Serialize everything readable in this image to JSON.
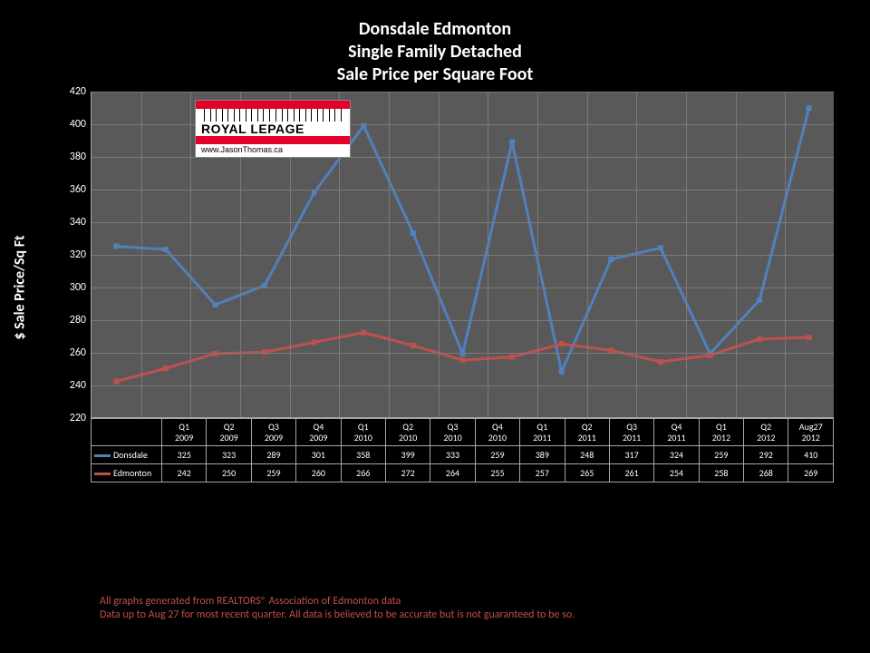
{
  "title_line1": "Donsdale Edmonton",
  "title_line2": "Single Family Detached",
  "title_line3": "Sale Price per Square Foot",
  "y_axis_label": "$ Sale Price/Sq Ft",
  "background_color": "#000000",
  "plot_background": "#595959",
  "grid_color": "#7a7a7a",
  "axis_color": "#a6a6a6",
  "text_color": "#ffffff",
  "ylim": [
    220,
    420
  ],
  "ytick_step": 20,
  "categories": [
    "Q1 2009",
    "Q2 2009",
    "Q3 2009",
    "Q4 2009",
    "Q1 2010",
    "Q2 2010",
    "Q3 2010",
    "Q4 2010",
    "Q1 2011",
    "Q2 2011",
    "Q3 2011",
    "Q4 2011",
    "Q1 2012",
    "Q2 2012",
    "Aug27 2012"
  ],
  "series": [
    {
      "name": "Donsdale",
      "color": "#4f81bd",
      "width": 3,
      "data": [
        325,
        323,
        289,
        301,
        358,
        399,
        333,
        259,
        389,
        248,
        317,
        324,
        259,
        292,
        410
      ]
    },
    {
      "name": "Edmonton",
      "color": "#c0504d",
      "width": 3,
      "data": [
        242,
        250,
        259,
        260,
        266,
        272,
        264,
        255,
        257,
        265,
        261,
        254,
        258,
        268,
        269
      ]
    }
  ],
  "logo": {
    "bar_color": "#e4002b",
    "brand": "ROYAL LEPAGE",
    "url": "www.JasonThomas.ca"
  },
  "disclaimer_line1": "All graphs generated from REALTORS® Association of Edmonton data",
  "disclaimer_line2": "Data up to Aug 27 for most recent quarter. All data is believed to be accurate but is not guaranteed to be so.",
  "disclaimer_color": "#c0504d"
}
